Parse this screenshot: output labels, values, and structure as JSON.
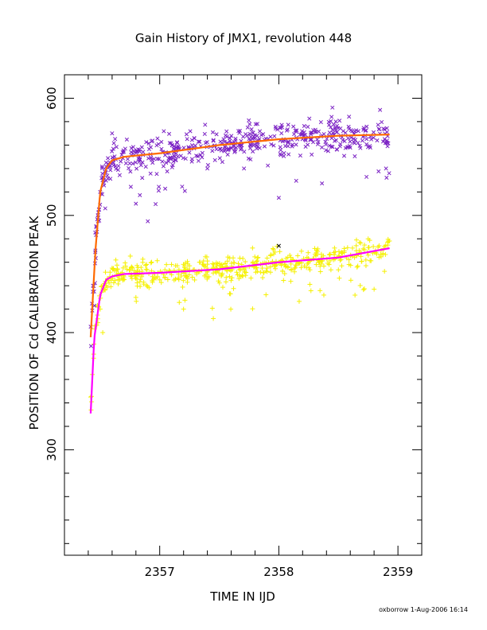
{
  "chart_data": {
    "type": "scatter",
    "title": "Gain History of JMX1, revolution 448",
    "xlabel": "TIME IN IJD",
    "ylabel": "POSITION OF Cd CALIBRATION PEAK",
    "footer": "oxborrow  1-Aug-2006 16:14",
    "xlim": [
      2356.2,
      2359.2
    ],
    "ylim": [
      210,
      620
    ],
    "x_ticks": [
      2357,
      2358,
      2359
    ],
    "y_ticks": [
      300,
      400,
      500,
      600
    ],
    "grid": false,
    "colors": {
      "upper_points": "#7b22c4",
      "upper_fit": "#ff6a00",
      "lower_points": "#f5f000",
      "lower_fit": "#ff00ff",
      "outlier": "#000000"
    },
    "series": [
      {
        "marker": "x",
        "role": "upper_points",
        "sample_points": [
          [
            2356.42,
            405
          ],
          [
            2356.44,
            440
          ],
          [
            2356.46,
            470
          ],
          [
            2356.48,
            500
          ],
          [
            2356.5,
            520
          ],
          [
            2356.52,
            530
          ],
          [
            2356.55,
            545
          ],
          [
            2356.6,
            570
          ],
          [
            2356.8,
            510
          ],
          [
            2356.9,
            495
          ],
          [
            2357.4,
            540
          ],
          [
            2358.0,
            515
          ],
          [
            2358.2,
            570
          ],
          [
            2358.45,
            592
          ],
          [
            2358.85,
            590
          ],
          [
            2358.9,
            540
          ]
        ]
      },
      {
        "marker": "line",
        "role": "upper_fit",
        "x": [
          2356.42,
          2356.46,
          2356.5,
          2356.55,
          2356.6,
          2356.7,
          2357.0,
          2357.5,
          2358.0,
          2358.5,
          2358.93
        ],
        "y": [
          396,
          470,
          520,
          540,
          547,
          550,
          553,
          560,
          565,
          568,
          569
        ]
      },
      {
        "marker": "+",
        "role": "lower_points",
        "sample_points": [
          [
            2356.42,
            345
          ],
          [
            2356.5,
            420
          ],
          [
            2356.55,
            440
          ],
          [
            2356.6,
            455
          ],
          [
            2356.8,
            430
          ],
          [
            2357.0,
            445
          ],
          [
            2357.2,
            420
          ],
          [
            2357.45,
            412
          ],
          [
            2357.7,
            455
          ],
          [
            2358.0,
            460
          ],
          [
            2358.5,
            465
          ],
          [
            2358.75,
            480
          ],
          [
            2358.8,
            437
          ],
          [
            2358.92,
            478
          ]
        ]
      },
      {
        "marker": "line",
        "role": "lower_fit",
        "x": [
          2356.42,
          2356.45,
          2356.5,
          2356.55,
          2356.6,
          2356.7,
          2357.0,
          2357.5,
          2358.0,
          2358.5,
          2358.93
        ],
        "y": [
          331,
          395,
          432,
          445,
          448,
          450,
          451,
          454,
          460,
          464,
          472
        ]
      },
      {
        "marker": "x",
        "role": "outlier",
        "sample_points": [
          [
            2358.0,
            474
          ]
        ]
      }
    ]
  }
}
